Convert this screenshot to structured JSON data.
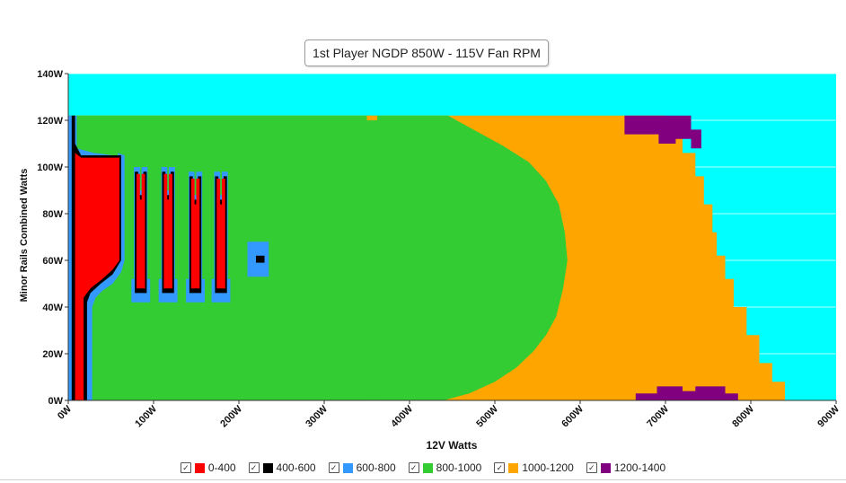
{
  "chart_data": {
    "type": "heatmap",
    "title": "1st Player NGDP 850W - 115V Fan RPM",
    "xlabel": "12V Watts",
    "ylabel": "Minor Rails Combined Watts",
    "xlim": [
      0,
      900
    ],
    "ylim": [
      0,
      140
    ],
    "x_ticks": [
      "0W",
      "100W",
      "200W",
      "300W",
      "400W",
      "500W",
      "600W",
      "700W",
      "800W",
      "900W"
    ],
    "y_ticks": [
      "0W",
      "20W",
      "40W",
      "60W",
      "80W",
      "100W",
      "120W",
      "140W"
    ],
    "x_tick_values": [
      0,
      100,
      200,
      300,
      400,
      500,
      600,
      700,
      800,
      900
    ],
    "y_tick_values": [
      0,
      20,
      40,
      60,
      80,
      100,
      120,
      140
    ],
    "grid": true,
    "background_color": "#00ffff",
    "legend_position": "bottom",
    "series": [
      {
        "name": "0-400",
        "color": "#ff0000"
      },
      {
        "name": "400-600",
        "color": "#000000"
      },
      {
        "name": "600-800",
        "color": "#3399ff"
      },
      {
        "name": "800-1000",
        "color": "#33cc33"
      },
      {
        "name": "1000-1200",
        "color": "#ffa500"
      },
      {
        "name": "1200-1400",
        "color": "#800080"
      }
    ],
    "regions": [
      {
        "band": "1000-1200",
        "polygon": [
          [
            0,
            0
          ],
          [
            840,
            0
          ],
          [
            840,
            8
          ],
          [
            825,
            8
          ],
          [
            825,
            16
          ],
          [
            810,
            16
          ],
          [
            810,
            28
          ],
          [
            795,
            28
          ],
          [
            795,
            40
          ],
          [
            780,
            40
          ],
          [
            780,
            52
          ],
          [
            770,
            52
          ],
          [
            770,
            62
          ],
          [
            760,
            62
          ],
          [
            760,
            72
          ],
          [
            755,
            72
          ],
          [
            755,
            84
          ],
          [
            745,
            84
          ],
          [
            745,
            96
          ],
          [
            735,
            96
          ],
          [
            735,
            106
          ],
          [
            720,
            106
          ],
          [
            720,
            114
          ],
          [
            700,
            114
          ],
          [
            700,
            122
          ],
          [
            0,
            122
          ]
        ]
      },
      {
        "band": "800-1000",
        "polygon": [
          [
            0,
            0
          ],
          [
            440,
            0
          ],
          [
            470,
            3
          ],
          [
            500,
            8
          ],
          [
            525,
            14
          ],
          [
            545,
            21
          ],
          [
            560,
            28
          ],
          [
            572,
            36
          ],
          [
            580,
            48
          ],
          [
            585,
            60
          ],
          [
            582,
            72
          ],
          [
            575,
            84
          ],
          [
            560,
            94
          ],
          [
            540,
            102
          ],
          [
            510,
            109
          ],
          [
            480,
            115
          ],
          [
            460,
            119
          ],
          [
            445,
            122
          ],
          [
            0,
            122
          ]
        ]
      },
      {
        "band": "800-1000",
        "polygon": [
          [
            355,
            0
          ],
          [
            370,
            0
          ],
          [
            370,
            2
          ],
          [
            355,
            2
          ]
        ]
      },
      {
        "band": "1000-1200",
        "polygon": [
          [
            350,
            120
          ],
          [
            362,
            120
          ],
          [
            362,
            122
          ],
          [
            350,
            122
          ]
        ]
      },
      {
        "band": "1200-1400",
        "polygon": [
          [
            652,
            122
          ],
          [
            730,
            122
          ],
          [
            730,
            116
          ],
          [
            742,
            116
          ],
          [
            742,
            108
          ],
          [
            730,
            108
          ],
          [
            730,
            112
          ],
          [
            712,
            112
          ],
          [
            712,
            110
          ],
          [
            692,
            110
          ],
          [
            692,
            114
          ],
          [
            652,
            114
          ]
        ]
      },
      {
        "band": "1200-1400",
        "polygon": [
          [
            665,
            0
          ],
          [
            785,
            0
          ],
          [
            785,
            3
          ],
          [
            770,
            3
          ],
          [
            770,
            6
          ],
          [
            735,
            6
          ],
          [
            735,
            4
          ],
          [
            720,
            4
          ],
          [
            720,
            6
          ],
          [
            690,
            6
          ],
          [
            690,
            3
          ],
          [
            665,
            3
          ]
        ]
      },
      {
        "band": "600-800",
        "polygon": [
          [
            8,
            0
          ],
          [
            28,
            0
          ],
          [
            28,
            40
          ],
          [
            32,
            44
          ],
          [
            40,
            47
          ],
          [
            52,
            50
          ],
          [
            62,
            55
          ],
          [
            66,
            60
          ],
          [
            66,
            105
          ],
          [
            58,
            106
          ],
          [
            58,
            95
          ],
          [
            52,
            95
          ],
          [
            52,
            105
          ],
          [
            30,
            106
          ],
          [
            10,
            108
          ],
          [
            10,
            122
          ],
          [
            0,
            122
          ],
          [
            0,
            0
          ]
        ]
      },
      {
        "band": "400-600",
        "polygon": [
          [
            4,
            0
          ],
          [
            22,
            0
          ],
          [
            22,
            42
          ],
          [
            26,
            46
          ],
          [
            38,
            50
          ],
          [
            52,
            54
          ],
          [
            62,
            60
          ],
          [
            62,
            105
          ],
          [
            15,
            105
          ],
          [
            8,
            110
          ],
          [
            8,
            122
          ],
          [
            4,
            122
          ]
        ]
      },
      {
        "band": "0-400",
        "polygon": [
          [
            8,
            0
          ],
          [
            18,
            0
          ],
          [
            18,
            44
          ],
          [
            26,
            48
          ],
          [
            40,
            52
          ],
          [
            52,
            56
          ],
          [
            60,
            60
          ],
          [
            60,
            104
          ],
          [
            15,
            104
          ],
          [
            8,
            106
          ]
        ]
      },
      {
        "band": "600-800",
        "polygon": [
          [
            74,
            42
          ],
          [
            96,
            42
          ],
          [
            96,
            52
          ],
          [
            93,
            52
          ],
          [
            93,
            100
          ],
          [
            86,
            100
          ],
          [
            86,
            90
          ],
          [
            84,
            90
          ],
          [
            84,
            100
          ],
          [
            77,
            100
          ],
          [
            77,
            52
          ],
          [
            74,
            52
          ]
        ]
      },
      {
        "band": "400-600",
        "polygon": [
          [
            78,
            46
          ],
          [
            92,
            46
          ],
          [
            92,
            98
          ],
          [
            88,
            98
          ],
          [
            88,
            88
          ],
          [
            82,
            88
          ],
          [
            82,
            98
          ],
          [
            78,
            98
          ]
        ]
      },
      {
        "band": "0-400",
        "polygon": [
          [
            80,
            48
          ],
          [
            90,
            48
          ],
          [
            90,
            97
          ],
          [
            86,
            97
          ],
          [
            86,
            86
          ],
          [
            84,
            86
          ],
          [
            84,
            97
          ],
          [
            80,
            97
          ]
        ]
      },
      {
        "band": "600-800",
        "polygon": [
          [
            106,
            42
          ],
          [
            128,
            42
          ],
          [
            128,
            52
          ],
          [
            125,
            52
          ],
          [
            125,
            100
          ],
          [
            118,
            100
          ],
          [
            118,
            90
          ],
          [
            116,
            90
          ],
          [
            116,
            100
          ],
          [
            109,
            100
          ],
          [
            109,
            52
          ],
          [
            106,
            52
          ]
        ]
      },
      {
        "band": "400-600",
        "polygon": [
          [
            110,
            46
          ],
          [
            124,
            46
          ],
          [
            124,
            98
          ],
          [
            120,
            98
          ],
          [
            120,
            88
          ],
          [
            114,
            88
          ],
          [
            114,
            98
          ],
          [
            110,
            98
          ]
        ]
      },
      {
        "band": "0-400",
        "polygon": [
          [
            112,
            48
          ],
          [
            122,
            48
          ],
          [
            122,
            97
          ],
          [
            118,
            97
          ],
          [
            118,
            86
          ],
          [
            116,
            86
          ],
          [
            116,
            97
          ],
          [
            112,
            97
          ]
        ]
      },
      {
        "band": "600-800",
        "polygon": [
          [
            138,
            42
          ],
          [
            160,
            42
          ],
          [
            160,
            52
          ],
          [
            157,
            52
          ],
          [
            157,
            98
          ],
          [
            150,
            98
          ],
          [
            150,
            88
          ],
          [
            148,
            88
          ],
          [
            148,
            98
          ],
          [
            141,
            98
          ],
          [
            141,
            52
          ],
          [
            138,
            52
          ]
        ]
      },
      {
        "band": "400-600",
        "polygon": [
          [
            142,
            46
          ],
          [
            156,
            46
          ],
          [
            156,
            96
          ],
          [
            152,
            96
          ],
          [
            152,
            86
          ],
          [
            146,
            86
          ],
          [
            146,
            96
          ],
          [
            142,
            96
          ]
        ]
      },
      {
        "band": "0-400",
        "polygon": [
          [
            144,
            48
          ],
          [
            154,
            48
          ],
          [
            154,
            95
          ],
          [
            150,
            95
          ],
          [
            150,
            84
          ],
          [
            148,
            84
          ],
          [
            148,
            95
          ],
          [
            144,
            95
          ]
        ]
      },
      {
        "band": "600-800",
        "polygon": [
          [
            168,
            42
          ],
          [
            190,
            42
          ],
          [
            190,
            52
          ],
          [
            187,
            52
          ],
          [
            187,
            98
          ],
          [
            180,
            98
          ],
          [
            180,
            88
          ],
          [
            178,
            88
          ],
          [
            178,
            98
          ],
          [
            171,
            98
          ],
          [
            171,
            52
          ],
          [
            168,
            52
          ]
        ]
      },
      {
        "band": "400-600",
        "polygon": [
          [
            172,
            46
          ],
          [
            186,
            46
          ],
          [
            186,
            96
          ],
          [
            182,
            96
          ],
          [
            182,
            86
          ],
          [
            176,
            86
          ],
          [
            176,
            96
          ],
          [
            172,
            96
          ]
        ]
      },
      {
        "band": "0-400",
        "polygon": [
          [
            174,
            48
          ],
          [
            184,
            48
          ],
          [
            184,
            95
          ],
          [
            180,
            95
          ],
          [
            180,
            84
          ],
          [
            178,
            84
          ],
          [
            178,
            95
          ],
          [
            174,
            95
          ]
        ]
      },
      {
        "band": "600-800",
        "polygon": [
          [
            210,
            53
          ],
          [
            235,
            53
          ],
          [
            235,
            68
          ],
          [
            210,
            68
          ]
        ]
      },
      {
        "band": "400-600",
        "polygon": [
          [
            220,
            59
          ],
          [
            230,
            59
          ],
          [
            230,
            62
          ],
          [
            220,
            62
          ]
        ]
      }
    ]
  }
}
